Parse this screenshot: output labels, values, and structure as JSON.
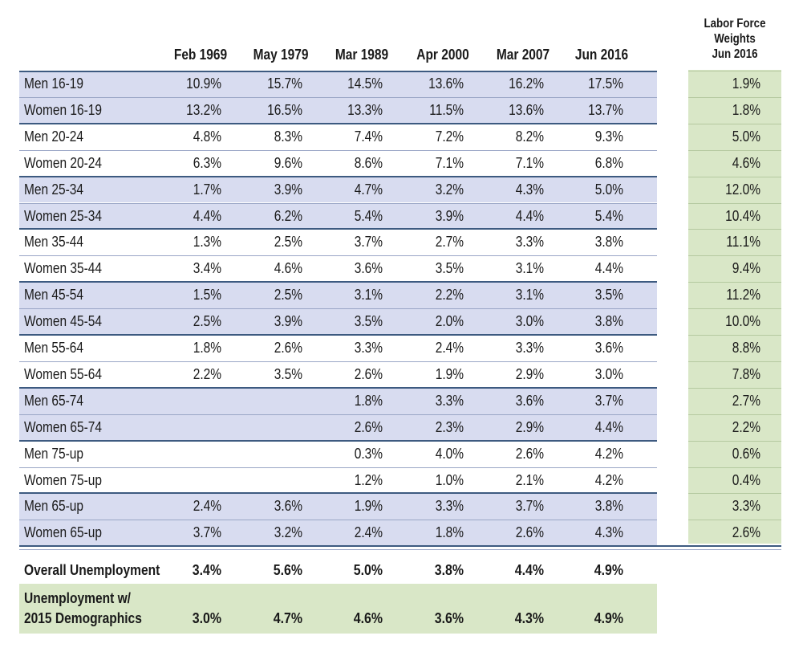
{
  "chart_data": {
    "type": "table",
    "columns": [
      "Feb 1969",
      "May 1979",
      "Mar 1989",
      "Apr 2000",
      "Mar 2007",
      "Jun 2016"
    ],
    "weights_header": [
      "Labor Force",
      "Weights",
      "Jun 2016"
    ],
    "rows": [
      {
        "label": "Men 16-19",
        "values": [
          "10.9%",
          "15.7%",
          "14.5%",
          "13.6%",
          "16.2%",
          "17.5%"
        ],
        "weight": "1.9%"
      },
      {
        "label": "Women 16-19",
        "values": [
          "13.2%",
          "16.5%",
          "13.3%",
          "11.5%",
          "13.6%",
          "13.7%"
        ],
        "weight": "1.8%"
      },
      {
        "label": "Men 20-24",
        "values": [
          "4.8%",
          "8.3%",
          "7.4%",
          "7.2%",
          "8.2%",
          "9.3%"
        ],
        "weight": "5.0%"
      },
      {
        "label": "Women 20-24",
        "values": [
          "6.3%",
          "9.6%",
          "8.6%",
          "7.1%",
          "7.1%",
          "6.8%"
        ],
        "weight": "4.6%"
      },
      {
        "label": "Men 25-34",
        "values": [
          "1.7%",
          "3.9%",
          "4.7%",
          "3.2%",
          "4.3%",
          "5.0%"
        ],
        "weight": "12.0%"
      },
      {
        "label": "Women 25-34",
        "values": [
          "4.4%",
          "6.2%",
          "5.4%",
          "3.9%",
          "4.4%",
          "5.4%"
        ],
        "weight": "10.4%"
      },
      {
        "label": "Men 35-44",
        "values": [
          "1.3%",
          "2.5%",
          "3.7%",
          "2.7%",
          "3.3%",
          "3.8%"
        ],
        "weight": "11.1%"
      },
      {
        "label": "Women 35-44",
        "values": [
          "3.4%",
          "4.6%",
          "3.6%",
          "3.5%",
          "3.1%",
          "4.4%"
        ],
        "weight": "9.4%"
      },
      {
        "label": "Men 45-54",
        "values": [
          "1.5%",
          "2.5%",
          "3.1%",
          "2.2%",
          "3.1%",
          "3.5%"
        ],
        "weight": "11.2%"
      },
      {
        "label": "Women 45-54",
        "values": [
          "2.5%",
          "3.9%",
          "3.5%",
          "2.0%",
          "3.0%",
          "3.8%"
        ],
        "weight": "10.0%"
      },
      {
        "label": "Men 55-64",
        "values": [
          "1.8%",
          "2.6%",
          "3.3%",
          "2.4%",
          "3.3%",
          "3.6%"
        ],
        "weight": "8.8%"
      },
      {
        "label": "Women 55-64",
        "values": [
          "2.2%",
          "3.5%",
          "2.6%",
          "1.9%",
          "2.9%",
          "3.0%"
        ],
        "weight": "7.8%"
      },
      {
        "label": "Men 65-74",
        "values": [
          "",
          "",
          "1.8%",
          "3.3%",
          "3.6%",
          "3.7%"
        ],
        "weight": "2.7%"
      },
      {
        "label": "Women 65-74",
        "values": [
          "",
          "",
          "2.6%",
          "2.3%",
          "2.9%",
          "4.4%"
        ],
        "weight": "2.2%"
      },
      {
        "label": "Men 75-up",
        "values": [
          "",
          "",
          "0.3%",
          "4.0%",
          "2.6%",
          "4.2%"
        ],
        "weight": "0.6%"
      },
      {
        "label": "Women 75-up",
        "values": [
          "",
          "",
          "1.2%",
          "1.0%",
          "2.1%",
          "4.2%"
        ],
        "weight": "0.4%"
      },
      {
        "label": "Men 65-up",
        "values": [
          "2.4%",
          "3.6%",
          "1.9%",
          "3.3%",
          "3.7%",
          "3.8%"
        ],
        "weight": "3.3%"
      },
      {
        "label": "Women 65-up",
        "values": [
          "3.7%",
          "3.2%",
          "2.4%",
          "1.8%",
          "2.6%",
          "4.3%"
        ],
        "weight": "2.6%"
      }
    ],
    "summary": [
      {
        "label_lines": [
          "Overall Unemployment"
        ],
        "values": [
          "3.4%",
          "5.6%",
          "5.0%",
          "3.8%",
          "4.4%",
          "4.9%"
        ]
      },
      {
        "label_lines": [
          "Unemployment w/",
          "2015 Demographics"
        ],
        "values": [
          "3.0%",
          "4.7%",
          "4.6%",
          "3.6%",
          "4.3%",
          "4.9%"
        ]
      }
    ],
    "colors": {
      "blue_band": "#d8dcf0",
      "green_band": "#d9e7c7",
      "rule": "#3d5a80"
    }
  }
}
